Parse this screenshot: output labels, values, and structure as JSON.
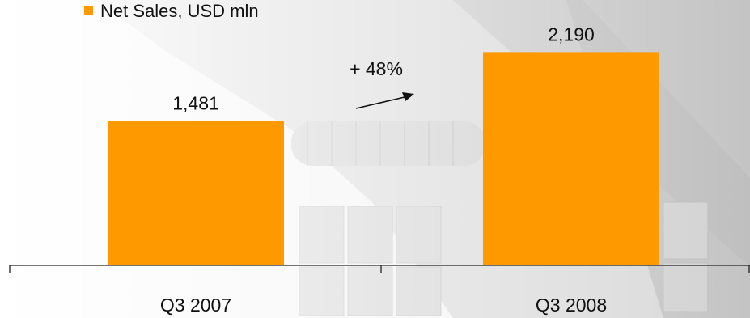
{
  "chart_data": {
    "type": "bar",
    "categories": [
      "Q3 2007",
      "Q3 2008"
    ],
    "series": [
      {
        "name": "Net Sales, USD mln",
        "values": [
          1481,
          2190
        ]
      }
    ],
    "data_labels": [
      "1,481",
      "2,190"
    ],
    "annotation": "+ 48%",
    "legend_position": "top-left",
    "grid": false,
    "ylim": [
      0,
      2600
    ],
    "color": "#FF9900"
  }
}
